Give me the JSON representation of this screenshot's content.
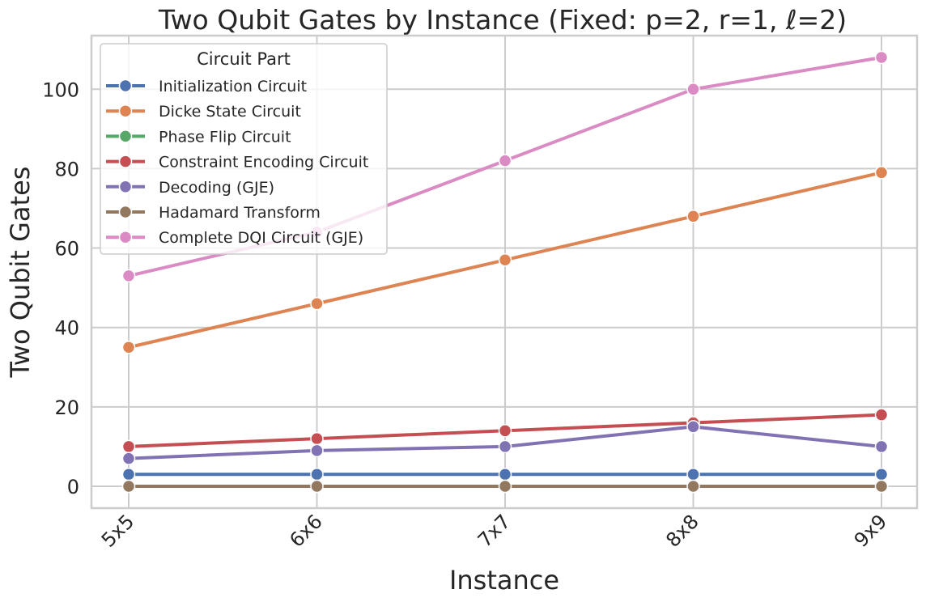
{
  "chart_data": {
    "type": "line",
    "title": "Two Qubit Gates by Instance (Fixed: p=2, r=1, ℓ=2)",
    "xlabel": "Instance",
    "ylabel": "Two Qubit Gates",
    "categories": [
      "5x5",
      "6x6",
      "7x7",
      "8x8",
      "9x9"
    ],
    "ylim": [
      -5.5,
      113.5
    ],
    "yticks": [
      0,
      20,
      40,
      60,
      80,
      100
    ],
    "grid": true,
    "legend_title": "Circuit Part",
    "legend_position": "top-left",
    "series": [
      {
        "name": "Initialization Circuit",
        "color": "#4c72b0",
        "values": [
          3,
          3,
          3,
          3,
          3
        ]
      },
      {
        "name": "Dicke State Circuit",
        "color": "#dd8452",
        "values": [
          35,
          46,
          57,
          68,
          79
        ]
      },
      {
        "name": "Phase Flip Circuit",
        "color": "#55a868",
        "values": [
          0,
          0,
          0,
          0,
          0
        ]
      },
      {
        "name": "Constraint Encoding Circuit",
        "color": "#c44e52",
        "values": [
          10,
          12,
          14,
          16,
          18
        ]
      },
      {
        "name": "Decoding (GJE)",
        "color": "#8172b3",
        "values": [
          7,
          9,
          10,
          15,
          10
        ]
      },
      {
        "name": "Hadamard Transform",
        "color": "#937860",
        "values": [
          0,
          0,
          0,
          0,
          0
        ]
      },
      {
        "name": "Complete DQI Circuit (GJE)",
        "color": "#da8bc3",
        "values": [
          53,
          64,
          82,
          100,
          108
        ]
      }
    ]
  }
}
